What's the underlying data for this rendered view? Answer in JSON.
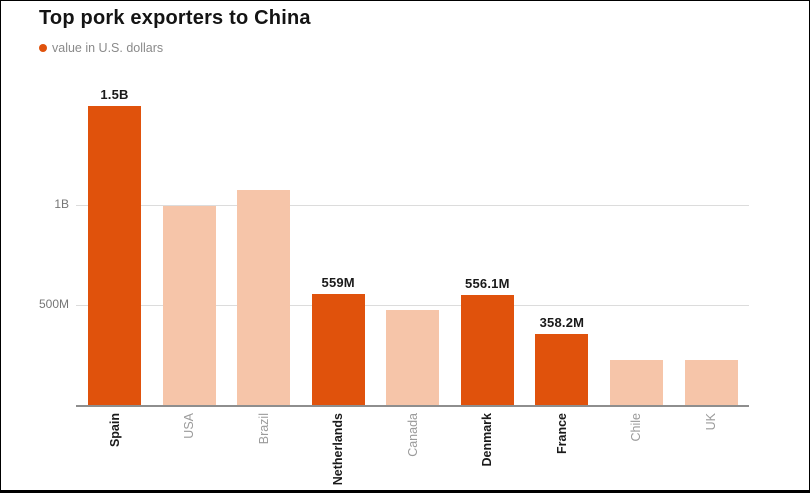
{
  "header": {
    "title": "Top pork exporters to China",
    "legend_label": "value in U.S. dollars"
  },
  "chart_data": {
    "type": "bar",
    "title": "Top pork exporters to China",
    "legend": "value in U.S. dollars",
    "legend_position": "top-left",
    "grid": true,
    "categories": [
      "Spain",
      "USA",
      "Brazil",
      "Netherlands",
      "Canada",
      "Denmark",
      "France",
      "Chile",
      "UK"
    ],
    "values_millions": [
      1500,
      1000,
      1080,
      559,
      480,
      556.1,
      358.2,
      230,
      230
    ],
    "bar_value_labels": [
      "1.5B",
      "",
      "",
      "559M",
      "",
      "556.1M",
      "358.2M",
      "",
      ""
    ],
    "highlighted": [
      true,
      false,
      false,
      true,
      false,
      true,
      true,
      false,
      false
    ],
    "xlabel": "",
    "ylabel": "value in U.S. dollars",
    "y_axis": {
      "range_millions": [
        0,
        1550
      ],
      "ticks": [
        {
          "label": "1B",
          "value_millions": 1000
        },
        {
          "label": "500M",
          "value_millions": 500
        }
      ]
    },
    "colors": {
      "highlight": "#e0520c",
      "muted": "#f6c5a9",
      "grid": "#dcdcdc",
      "baseline": "#8e8e8e",
      "label_dark": "#1a1a1a",
      "label_muted": "#9b9b9b"
    }
  }
}
